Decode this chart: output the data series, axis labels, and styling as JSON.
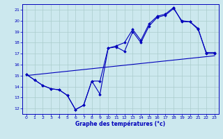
{
  "xlabel": "Graphe des températures (°c)",
  "background_color": "#cce8ee",
  "grid_color": "#aacccc",
  "line_color": "#0000bb",
  "xlim": [
    -0.5,
    23.5
  ],
  "ylim": [
    11.5,
    21.5
  ],
  "xticks": [
    0,
    1,
    2,
    3,
    4,
    5,
    6,
    7,
    8,
    9,
    10,
    11,
    12,
    13,
    14,
    15,
    16,
    17,
    18,
    19,
    20,
    21,
    22,
    23
  ],
  "yticks": [
    12,
    13,
    14,
    15,
    16,
    17,
    18,
    19,
    20,
    21
  ],
  "series1_x": [
    0,
    1,
    2,
    3,
    4,
    5,
    6,
    7,
    8,
    9,
    10,
    11,
    12,
    13,
    14,
    15,
    16,
    17,
    18,
    19,
    20,
    21,
    22,
    23
  ],
  "series1_y": [
    15.1,
    14.6,
    14.1,
    13.8,
    13.7,
    13.2,
    11.9,
    12.3,
    14.5,
    13.3,
    17.5,
    17.6,
    17.2,
    19.0,
    18.0,
    19.5,
    20.3,
    20.5,
    21.1,
    20.0,
    19.9,
    19.3,
    17.0,
    17.0
  ],
  "series2_x": [
    0,
    1,
    2,
    3,
    4,
    5,
    6,
    7,
    8,
    9,
    10,
    11,
    12,
    13,
    14,
    15,
    16,
    17,
    18,
    19,
    20,
    21,
    22,
    23
  ],
  "series2_y": [
    15.1,
    14.6,
    14.1,
    13.8,
    13.7,
    13.2,
    11.9,
    12.3,
    14.5,
    14.5,
    17.5,
    17.7,
    18.0,
    19.2,
    18.2,
    19.7,
    20.4,
    20.6,
    21.2,
    19.9,
    19.9,
    19.2,
    17.1,
    17.1
  ],
  "series3_x": [
    0,
    23
  ],
  "series3_y": [
    15.0,
    16.8
  ],
  "figsize": [
    3.2,
    2.0
  ],
  "dpi": 100
}
